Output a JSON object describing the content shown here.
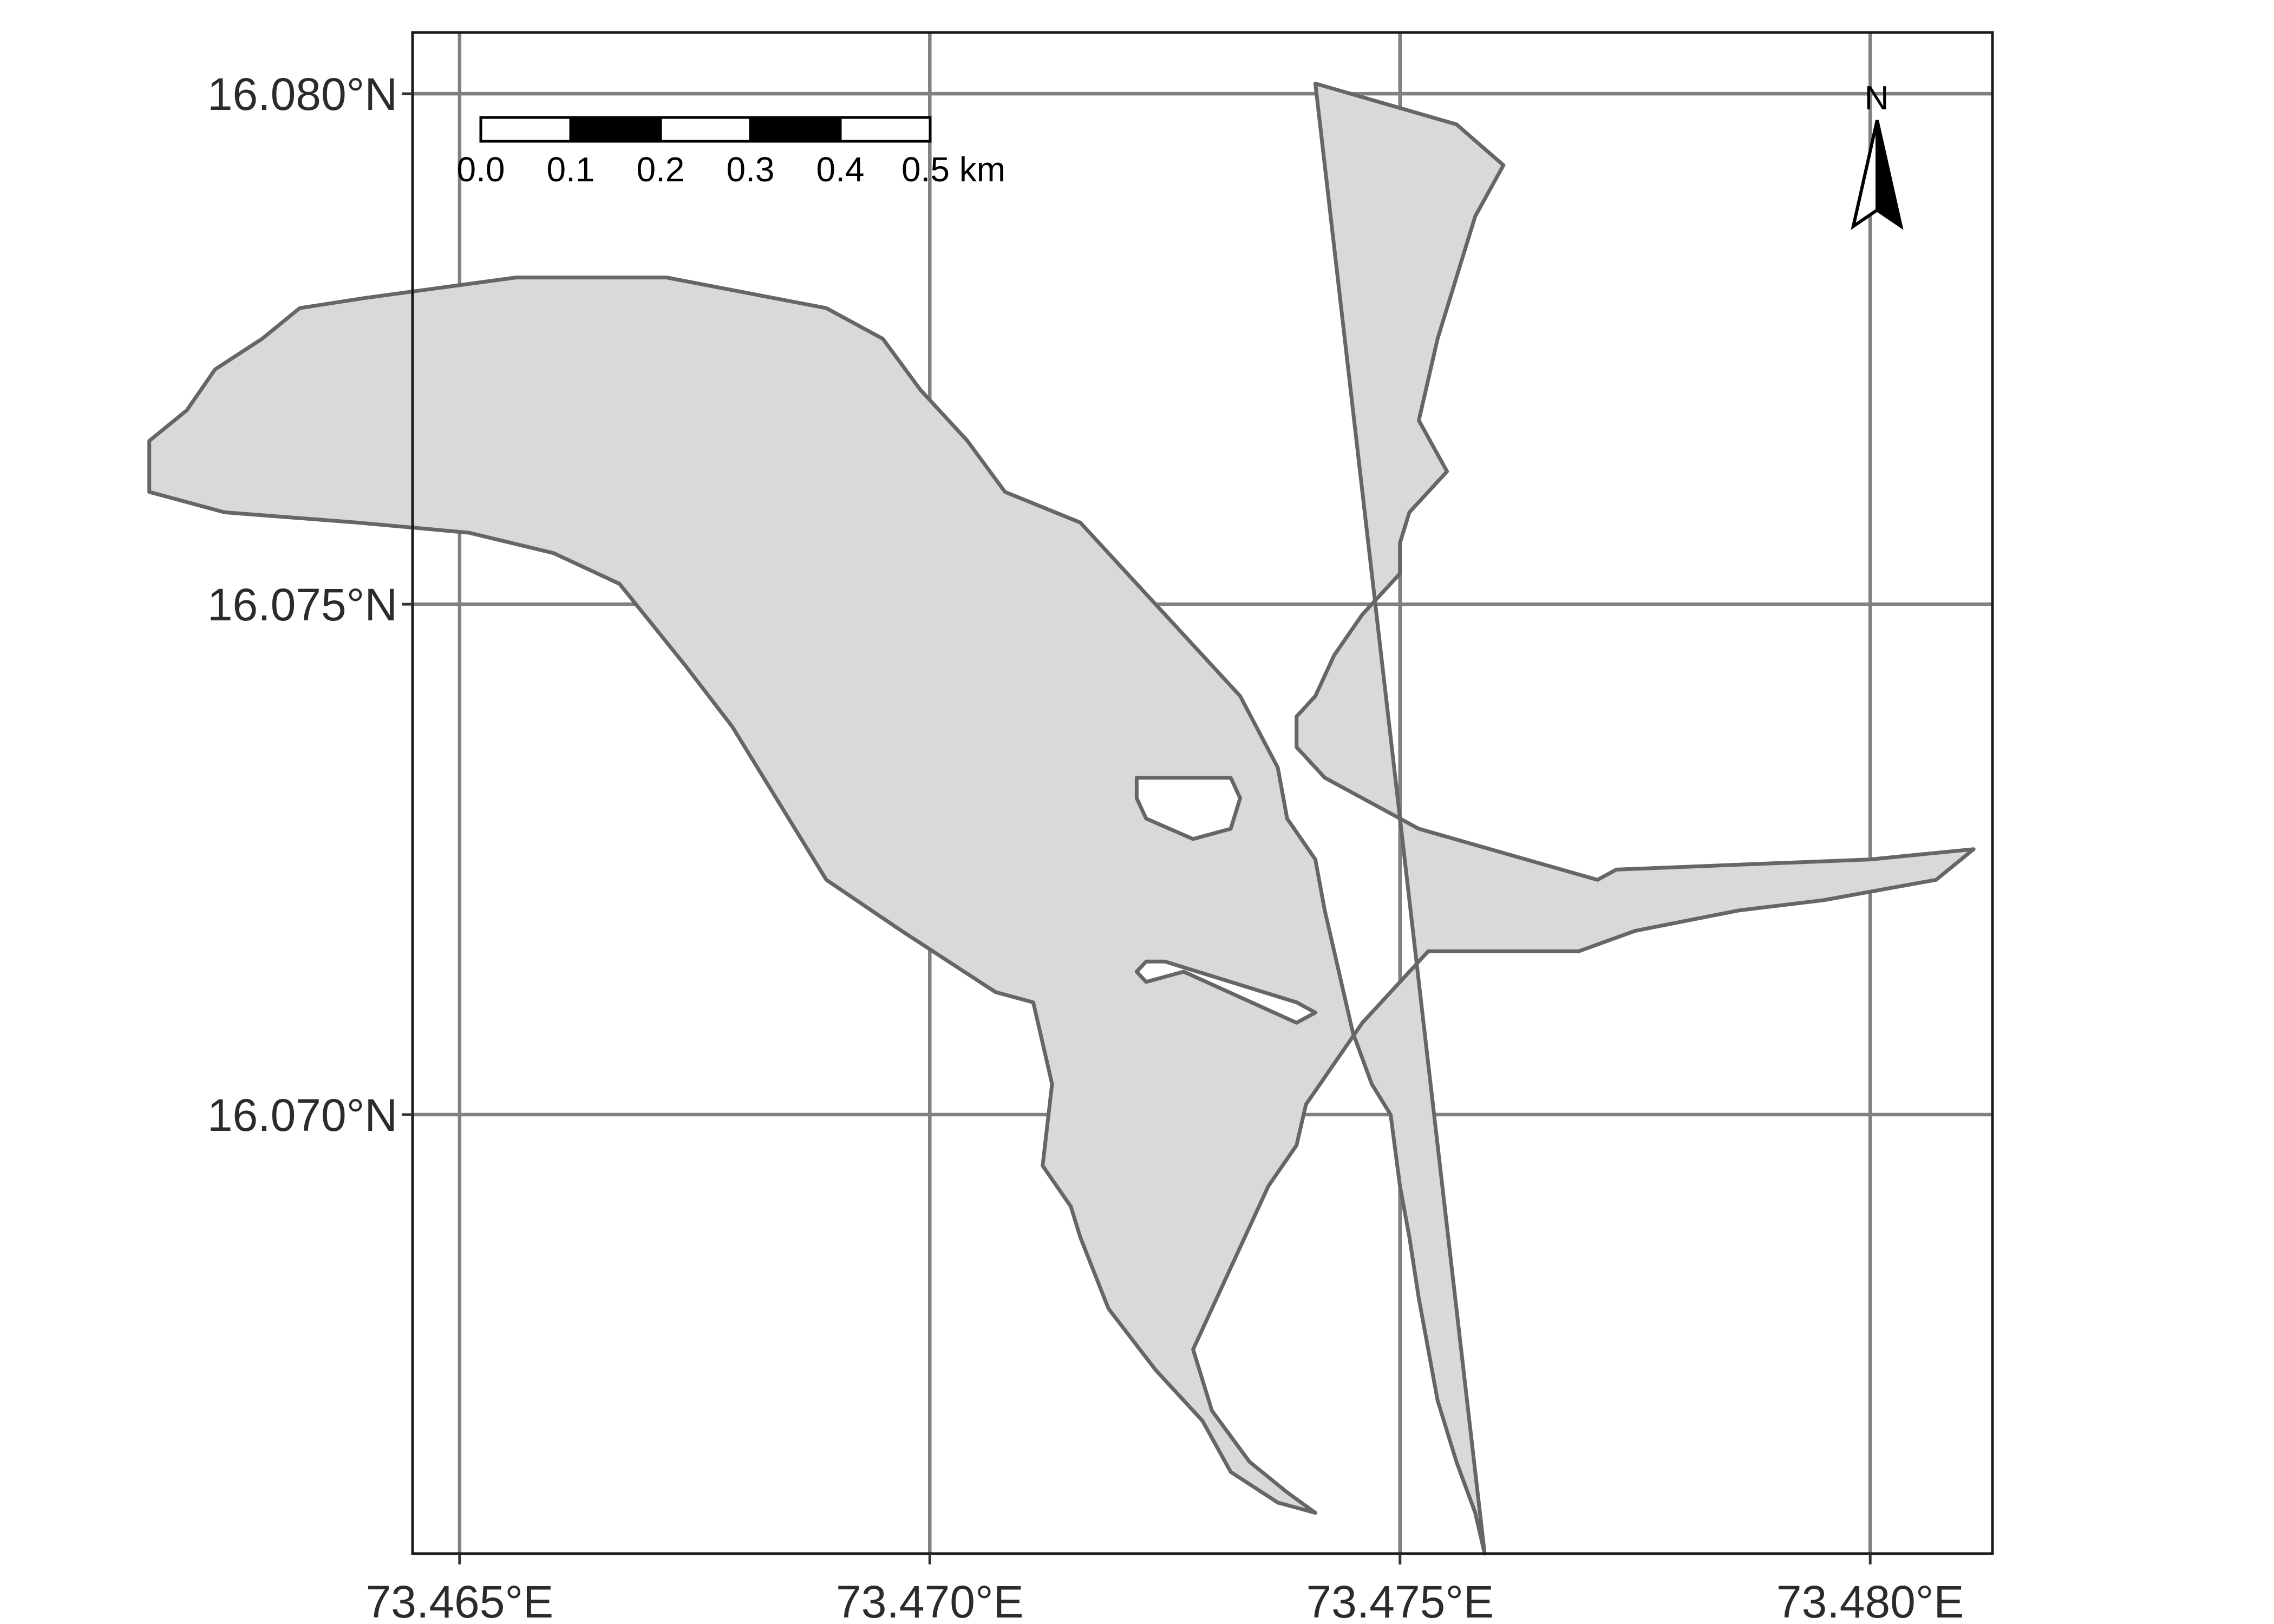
{
  "map": {
    "xlim": [
      73.4645,
      73.4813
    ],
    "ylim": [
      16.0657,
      16.0806
    ],
    "x_ticks": [
      {
        "value": 73.465,
        "label": "73.465°E"
      },
      {
        "value": 73.47,
        "label": "73.470°E"
      },
      {
        "value": 73.475,
        "label": "73.475°E"
      },
      {
        "value": 73.48,
        "label": "73.480°E"
      }
    ],
    "y_ticks": [
      {
        "value": 16.07,
        "label": "16.070°N"
      },
      {
        "value": 16.075,
        "label": "16.075°N"
      },
      {
        "value": 16.08,
        "label": "16.080°N"
      }
    ],
    "grid": true,
    "fill_color": "#d9d9d9",
    "outline_color": "#666666",
    "grid_color": "#808080",
    "polygon_outer": [
      [
        73.4741,
        16.0801
      ],
      [
        73.4756,
        16.0797
      ],
      [
        73.4761,
        16.0793
      ],
      [
        73.4758,
        16.0788
      ],
      [
        73.4754,
        16.0776
      ],
      [
        73.4753,
        16.0772
      ],
      [
        73.4752,
        16.0768
      ],
      [
        73.4755,
        16.0763
      ],
      [
        73.4751,
        16.0759
      ],
      [
        73.475,
        16.0756
      ],
      [
        73.475,
        16.0753
      ],
      [
        73.4749,
        16.0752
      ],
      [
        73.4746,
        16.0749
      ],
      [
        73.4743,
        16.0745
      ],
      [
        73.4741,
        16.0741
      ],
      [
        73.4739,
        16.0739
      ],
      [
        73.4739,
        16.0736
      ],
      [
        73.4742,
        16.0733
      ],
      [
        73.4746,
        16.0731
      ],
      [
        73.4752,
        16.0728
      ],
      [
        73.4771,
        16.0723
      ],
      [
        73.4773,
        16.0724
      ],
      [
        73.48,
        16.0725
      ],
      [
        73.4811,
        16.0726
      ],
      [
        73.4807,
        16.0723
      ],
      [
        73.4795,
        16.0721
      ],
      [
        73.4786,
        16.072
      ],
      [
        73.4775,
        16.0718
      ],
      [
        73.4769,
        16.0716
      ],
      [
        73.4753,
        16.0716
      ],
      [
        73.4749,
        16.0712
      ],
      [
        73.4746,
        16.0709
      ],
      [
        73.4743,
        16.0705
      ],
      [
        73.474,
        16.0701
      ],
      [
        73.4739,
        16.0697
      ],
      [
        73.4736,
        16.0693
      ],
      [
        73.4733,
        16.0687
      ],
      [
        73.4731,
        16.0683
      ],
      [
        73.4729,
        16.0679
      ],
      [
        73.4728,
        16.0677
      ],
      [
        73.473,
        16.0671
      ],
      [
        73.4734,
        16.0666
      ],
      [
        73.4738,
        16.0663
      ],
      [
        73.4741,
        16.0661
      ],
      [
        73.4737,
        16.0662
      ],
      [
        73.4732,
        16.0665
      ],
      [
        73.4729,
        16.067
      ],
      [
        73.4724,
        16.0675
      ],
      [
        73.4719,
        16.0681
      ],
      [
        73.4716,
        16.0688
      ],
      [
        73.4715,
        16.0691
      ],
      [
        73.4712,
        16.0695
      ],
      [
        73.4713,
        16.0703
      ],
      [
        73.4711,
        16.0711
      ],
      [
        73.4707,
        16.0712
      ],
      [
        73.4702,
        16.0715
      ],
      [
        73.4697,
        16.0718
      ],
      [
        73.4689,
        16.0723
      ],
      [
        73.4683,
        16.0732
      ],
      [
        73.4679,
        16.0738
      ],
      [
        73.4674,
        16.0744
      ],
      [
        73.4667,
        16.0752
      ],
      [
        73.466,
        16.0755
      ],
      [
        73.4651,
        16.0757
      ],
      [
        73.4639,
        16.0758
      ],
      [
        73.4625,
        16.0759
      ],
      [
        73.4617,
        16.0761
      ],
      [
        73.4617,
        16.0766
      ],
      [
        73.4621,
        16.0769
      ],
      [
        73.4624,
        16.0773
      ],
      [
        73.4629,
        16.0776
      ],
      [
        73.4633,
        16.0779
      ],
      [
        73.464,
        16.078
      ],
      [
        73.4656,
        16.0782
      ],
      [
        73.4672,
        16.0782
      ],
      [
        73.4689,
        16.0779
      ],
      [
        73.4695,
        16.0776
      ],
      [
        73.4699,
        16.0771
      ],
      [
        73.4704,
        16.0766
      ],
      [
        73.4708,
        16.0761
      ],
      [
        73.4716,
        16.0758
      ],
      [
        73.4721,
        16.0753
      ],
      [
        73.4727,
        16.0747
      ],
      [
        73.4733,
        16.0741
      ],
      [
        73.4737,
        16.0734
      ],
      [
        73.4738,
        16.0729
      ],
      [
        73.4741,
        16.0725
      ],
      [
        73.4742,
        16.072
      ],
      [
        73.4743,
        16.0716
      ],
      [
        73.4744,
        16.0712
      ],
      [
        73.4745,
        16.0708
      ],
      [
        73.4747,
        16.0703
      ],
      [
        73.4749,
        16.07
      ],
      [
        73.475,
        16.0693
      ],
      [
        73.4751,
        16.0688
      ],
      [
        73.4752,
        16.0682
      ],
      [
        73.4753,
        16.0677
      ],
      [
        73.4754,
        16.0672
      ],
      [
        73.4756,
        16.0666
      ],
      [
        73.4758,
        16.0661
      ],
      [
        73.4759,
        16.0657
      ]
    ],
    "polygon_holes": [
      [
        [
          73.4722,
          16.0733
        ],
        [
          73.4732,
          16.0733
        ],
        [
          73.4733,
          16.0731
        ],
        [
          73.4732,
          16.0728
        ],
        [
          73.4728,
          16.0727
        ],
        [
          73.4723,
          16.0729
        ],
        [
          73.4722,
          16.0731
        ]
      ],
      [
        [
          73.4723,
          16.0715
        ],
        [
          73.4725,
          16.0715
        ],
        [
          73.4739,
          16.0711
        ],
        [
          73.4741,
          16.071
        ],
        [
          73.4739,
          16.0709
        ],
        [
          73.4727,
          16.0714
        ],
        [
          73.4723,
          16.0713
        ],
        [
          73.4722,
          16.0714
        ]
      ]
    ],
    "north_arrow_label": "N",
    "scale_bar": {
      "labels": [
        "0.0",
        "0.1",
        "0.2",
        "0.3",
        "0.4",
        "0.5 km"
      ],
      "segments": 5
    }
  }
}
